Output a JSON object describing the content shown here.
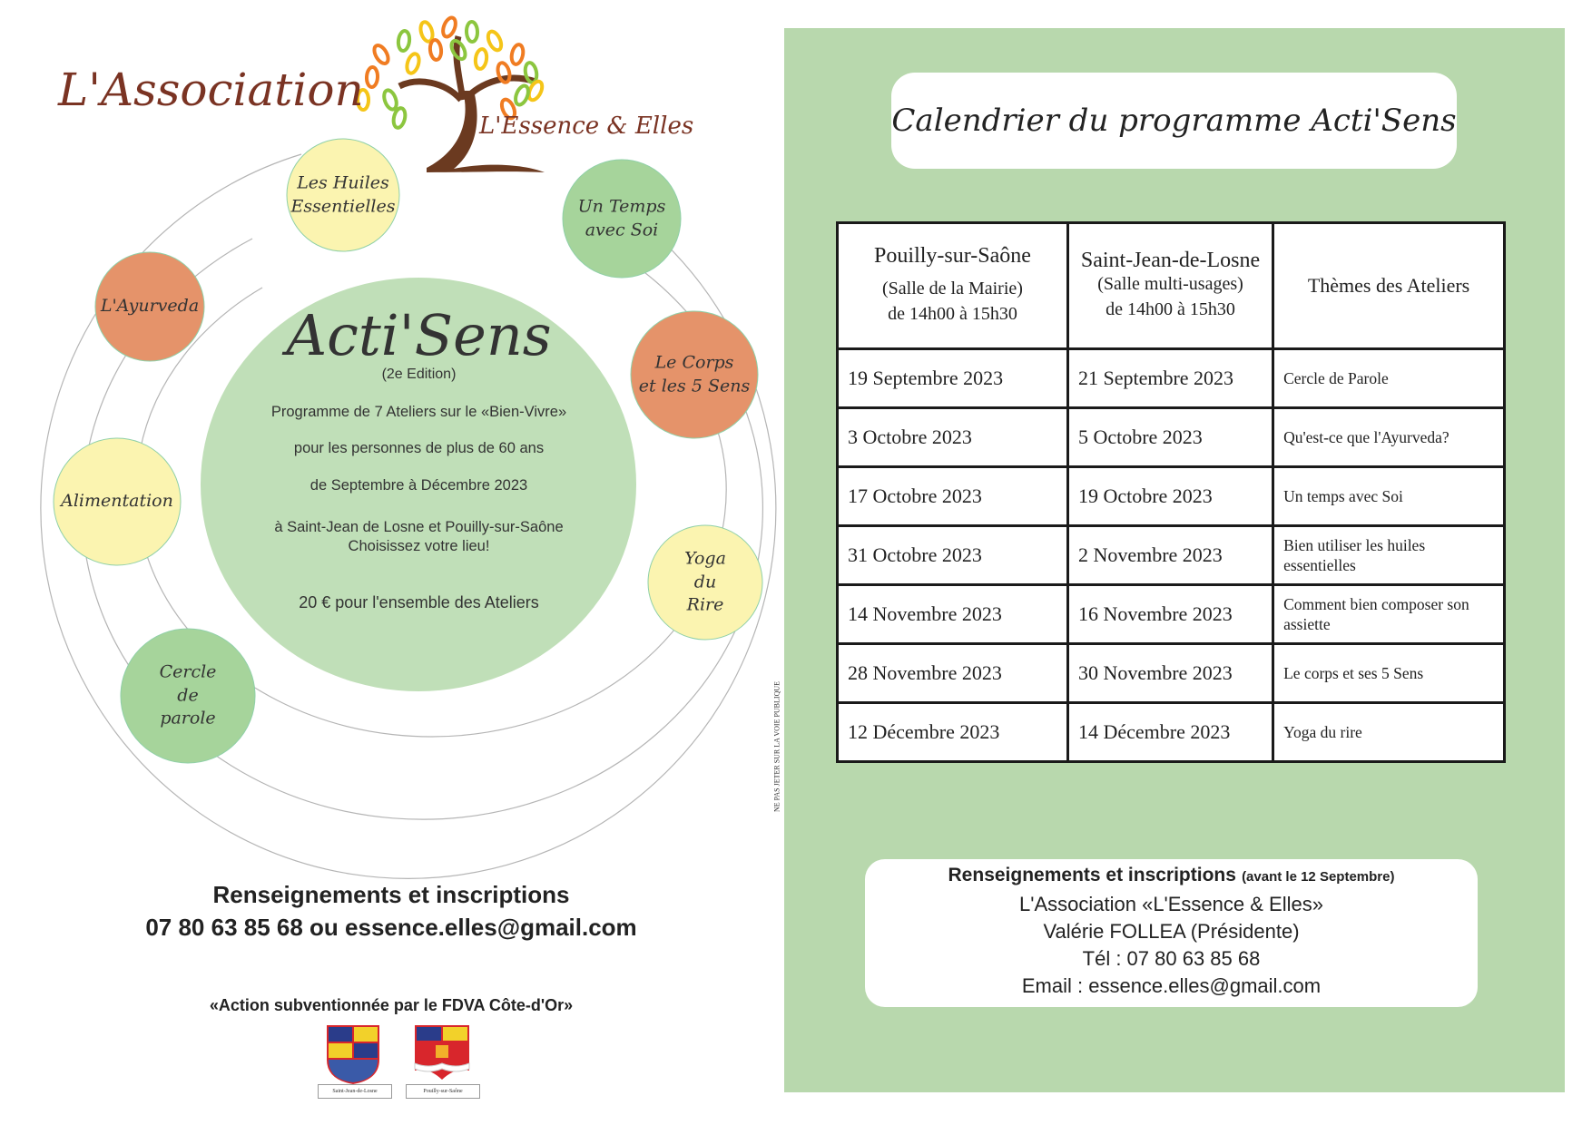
{
  "left": {
    "logo": {
      "association": "L'Association",
      "name": "L'Essence & Elles"
    },
    "bubbles": [
      {
        "lines": [
          "Les Huiles",
          "Essentielles"
        ],
        "color": "#fbf4b0"
      },
      {
        "lines": [
          "L'Ayurveda"
        ],
        "color": "#e5936a"
      },
      {
        "lines": [
          "Alimentation"
        ],
        "color": "#fbf4b0"
      },
      {
        "lines": [
          "Cercle",
          "de",
          "parole"
        ],
        "color": "#a6d49b"
      },
      {
        "lines": [
          "Un Temps",
          "avec Soi"
        ],
        "color": "#a6d49b"
      },
      {
        "lines": [
          "Le Corps",
          "et les 5 Sens"
        ],
        "color": "#e5936a"
      },
      {
        "lines": [
          "Yoga",
          "du",
          "Rire"
        ],
        "color": "#fbf4b0"
      }
    ],
    "center": {
      "title": "Acti'Sens",
      "edition": "(2e Edition)",
      "line1": "Programme de 7 Ateliers sur le «Bien-Vivre»",
      "line2": "pour les personnes de plus de 60 ans",
      "line3": "de Septembre à Décembre 2023",
      "line4": "à Saint-Jean de Losne et Pouilly-sur-Saône",
      "line5": "Choisissez votre lieu!",
      "price": "20 € pour l'ensemble des Ateliers"
    },
    "contact_title": "Renseignements et inscriptions",
    "contact_line": "07 80 63 85 68 ou essence.elles@gmail.com",
    "subsidy": "«Action subventionnée par le FDVA Côte-d'Or»",
    "arms": [
      "Saint-Jean-de-Losne",
      "Pouilly-sur-Saône"
    ],
    "vertical_note": "NE PAS JETER SUR LA VOIE PUBLIQUE"
  },
  "right": {
    "title": "Calendrier du programme Acti'Sens",
    "table": {
      "headers": [
        {
          "title": "Pouilly-sur-Saône",
          "sub1": "(Salle de la Mairie)",
          "sub2": "de 14h00 à 15h30"
        },
        {
          "title": "Saint-Jean-de-Losne",
          "sub1": "(Salle multi-usages)",
          "sub2": "de 14h00 à 15h30"
        },
        {
          "title": "Thèmes des Ateliers"
        }
      ],
      "rows": [
        [
          "19 Septembre 2023",
          "21 Septembre 2023",
          "Cercle de Parole"
        ],
        [
          "3 Octobre 2023",
          "5 Octobre 2023",
          "Qu'est-ce que l'Ayurveda?"
        ],
        [
          "17 Octobre 2023",
          "19 Octobre 2023",
          "Un temps avec Soi"
        ],
        [
          "31 Octobre 2023",
          "2 Novembre 2023",
          "Bien utiliser les huiles essentielles"
        ],
        [
          "14 Novembre 2023",
          "16 Novembre 2023",
          "Comment bien composer son assiette"
        ],
        [
          "28 Novembre 2023",
          "30 Novembre 2023",
          "Le corps et ses 5 Sens"
        ],
        [
          "12 Décembre 2023",
          "14 Décembre 2023",
          "Yoga du rire"
        ]
      ]
    },
    "contact": {
      "title": "Renseignements et inscriptions",
      "deadline": "(avant le 12 Septembre)",
      "association": "L'Association «L'Essence & Elles»",
      "president": "Valérie FOLLEA (Présidente)",
      "phone": "Tél : 07 80 63 85 68",
      "email": "Email : essence.elles@gmail.com"
    }
  },
  "colors": {
    "panel": "#b8d8ad",
    "center_circle": "#c0dfb8",
    "logo_brown": "#7a3323"
  }
}
